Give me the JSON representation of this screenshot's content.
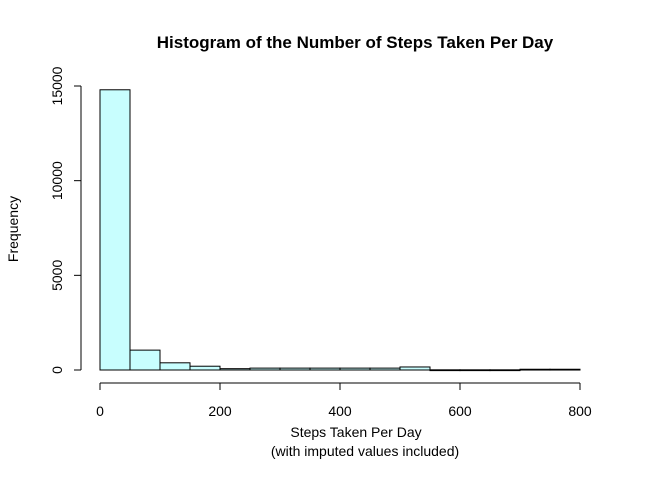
{
  "chart_data": {
    "type": "bar",
    "title": "Histogram of the Number of Steps Taken Per Day",
    "xlabel": "Steps Taken Per Day",
    "xlabel_sub": "(with imputed values included)",
    "ylabel": "Frequency",
    "bar_color": "#C8FEFE",
    "bins": [
      {
        "start": 0,
        "end": 50,
        "count": 14800
      },
      {
        "start": 50,
        "end": 100,
        "count": 1050
      },
      {
        "start": 100,
        "end": 150,
        "count": 380
      },
      {
        "start": 150,
        "end": 200,
        "count": 200
      },
      {
        "start": 200,
        "end": 250,
        "count": 70
      },
      {
        "start": 250,
        "end": 300,
        "count": 100
      },
      {
        "start": 300,
        "end": 350,
        "count": 100
      },
      {
        "start": 350,
        "end": 400,
        "count": 100
      },
      {
        "start": 400,
        "end": 450,
        "count": 100
      },
      {
        "start": 450,
        "end": 500,
        "count": 100
      },
      {
        "start": 500,
        "end": 550,
        "count": 160
      },
      {
        "start": 550,
        "end": 600,
        "count": 10
      },
      {
        "start": 600,
        "end": 650,
        "count": 10
      },
      {
        "start": 650,
        "end": 700,
        "count": 10
      },
      {
        "start": 700,
        "end": 750,
        "count": 40
      },
      {
        "start": 750,
        "end": 800,
        "count": 40
      }
    ],
    "xlim": [
      0,
      850
    ],
    "ylim": [
      0,
      15000
    ],
    "x_ticks": [
      0,
      200,
      400,
      600,
      800
    ],
    "x_tick_labels": [
      "0",
      "200",
      "400",
      "600",
      "800"
    ],
    "y_ticks": [
      0,
      5000,
      10000,
      15000
    ],
    "y_tick_labels": [
      "0",
      "5000",
      "10000",
      "15000"
    ]
  }
}
